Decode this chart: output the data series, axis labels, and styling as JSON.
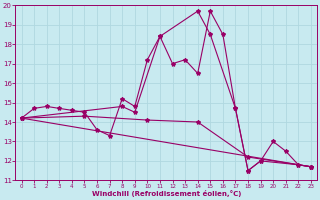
{
  "xlabel": "Windchill (Refroidissement éolien,°C)",
  "ylabel": "",
  "xlim": [
    -0.5,
    23.5
  ],
  "ylim": [
    11,
    20
  ],
  "yticks": [
    11,
    12,
    13,
    14,
    15,
    16,
    17,
    18,
    19,
    20
  ],
  "xticks": [
    0,
    1,
    2,
    3,
    4,
    5,
    6,
    7,
    8,
    9,
    10,
    11,
    12,
    13,
    14,
    15,
    16,
    17,
    18,
    19,
    20,
    21,
    22,
    23
  ],
  "bg_color": "#c8eaf0",
  "line_color": "#990066",
  "grid_color": "#b0d8e0",
  "line1_x": [
    0,
    1,
    2,
    3,
    4,
    5,
    6,
    7,
    8,
    9,
    10,
    11,
    12,
    13,
    14,
    15,
    16,
    17,
    18,
    19,
    20,
    21,
    22,
    23
  ],
  "line1_y": [
    14.2,
    14.7,
    14.8,
    14.7,
    14.6,
    14.5,
    13.6,
    13.3,
    15.2,
    14.8,
    17.2,
    18.4,
    17.0,
    17.2,
    16.5,
    19.7,
    18.5,
    14.7,
    11.5,
    12.0,
    13.0,
    12.5,
    11.8,
    11.7
  ],
  "line2_x": [
    0,
    5,
    10,
    14,
    18,
    23
  ],
  "line2_y": [
    14.2,
    14.3,
    14.1,
    14.0,
    12.2,
    11.7
  ],
  "line3_x": [
    0,
    8,
    9,
    11,
    14,
    15,
    17,
    18,
    19,
    22,
    23
  ],
  "line3_y": [
    14.2,
    14.8,
    14.5,
    18.4,
    19.7,
    18.5,
    14.7,
    11.5,
    12.0,
    11.8,
    11.7
  ],
  "line4_x": [
    0,
    23
  ],
  "line4_y": [
    14.2,
    11.7
  ]
}
